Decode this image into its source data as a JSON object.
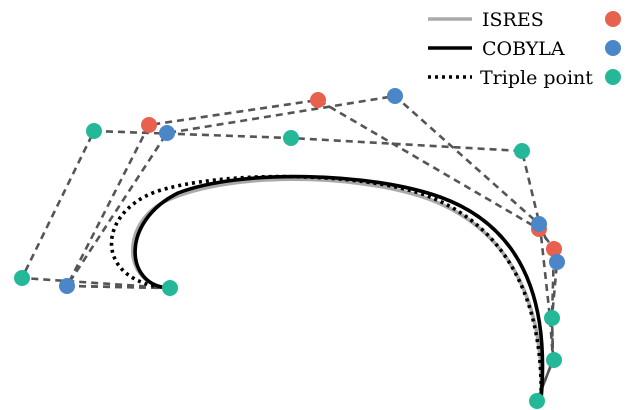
{
  "colors": {
    "isres": "#e8604e",
    "cobyla": "#4a86c8",
    "triple": "#25b898",
    "isres_curve": "#aaaaaa",
    "cobyla_curve": "#000000",
    "triple_curve": "#000000",
    "control_polygon": "#555555"
  },
  "legend": {
    "items": [
      {
        "label": "ISRES",
        "line_style": "solid-gray",
        "marker": "isres"
      },
      {
        "label": "COBYLA",
        "line_style": "solid-black",
        "marker": "cobyla"
      },
      {
        "label": "Triple point",
        "line_style": "dotted-black",
        "marker": "triple"
      }
    ]
  }
}
